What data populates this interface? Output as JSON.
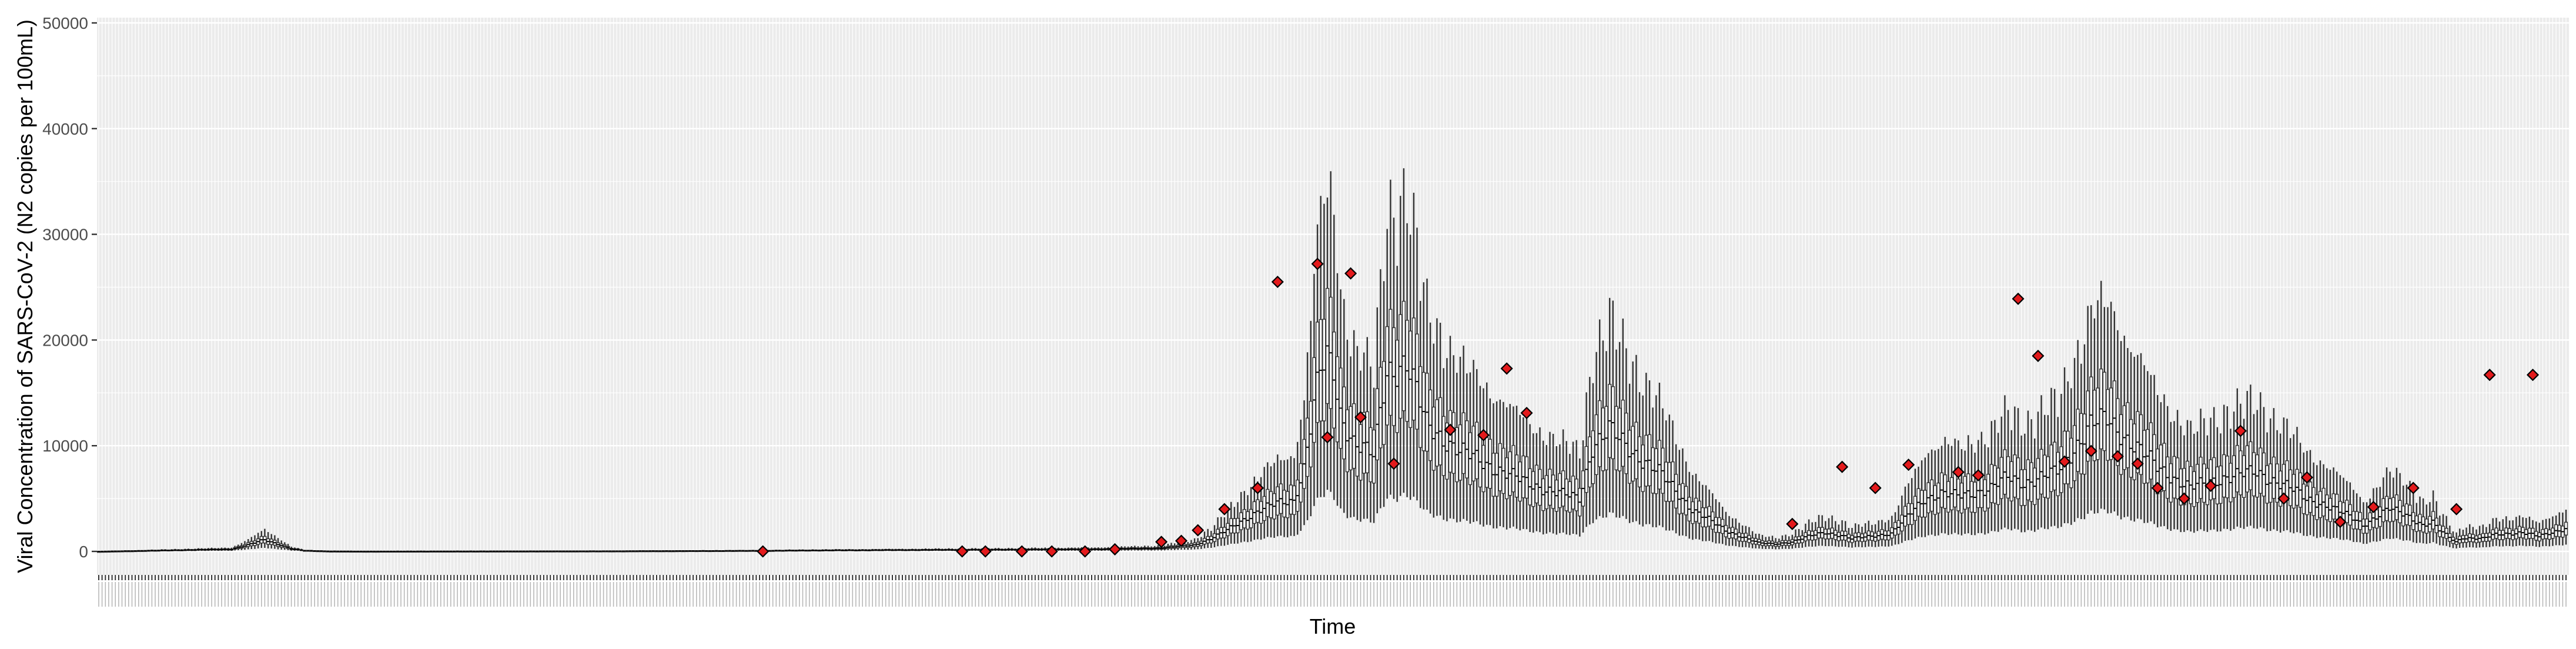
{
  "chart_data": {
    "type": "boxplot",
    "title": "",
    "xlabel": "Time",
    "ylabel": "Viral Concentration of SARS-CoV-2 (N2 copies per 100mL)",
    "ylim": [
      0,
      50000
    ],
    "y_ticks": [
      0,
      10000,
      20000,
      30000,
      40000,
      50000
    ],
    "y_tick_labels": [
      "0",
      "10000",
      "20000",
      "30000",
      "40000",
      "50000"
    ],
    "x_tick_labels_legible": false,
    "n_time_points": 744,
    "grid": true,
    "legend": "none",
    "colors": {
      "panel_background": "#ebebeb",
      "grid_major": "#ffffff",
      "box_outline": "#333333",
      "observed_fill": "#e31a1c",
      "observed_outline": "#000000"
    },
    "series": [
      {
        "kind": "boxplot_median",
        "profile_x": [
          0,
          40,
          45,
          50,
          55,
          58,
          62,
          70,
          80,
          150,
          200,
          215,
          300,
          320,
          330,
          335,
          340,
          345,
          350,
          355,
          360,
          363,
          366,
          368,
          370,
          372,
          374,
          378,
          384,
          388,
          394,
          400,
          410,
          420,
          430,
          440,
          446,
          450,
          455,
          460,
          470,
          480,
          490,
          500,
          505,
          510,
          513,
          516,
          520,
          525,
          528,
          540,
          550,
          555,
          560,
          570,
          575,
          580,
          590,
          600,
          605,
          610,
          620,
          630,
          640,
          650,
          660,
          665,
          670,
          680,
          682,
          690,
          695,
          700,
          703,
          705,
          710,
          712,
          718,
          722,
          730,
          735,
          744
        ],
        "profile_y": [
          0,
          200,
          600,
          1100,
          600,
          250,
          80,
          20,
          10,
          30,
          70,
          100,
          200,
          300,
          600,
          1200,
          2000,
          3000,
          4000,
          4500,
          4800,
          8000,
          14000,
          17000,
          18000,
          17000,
          13000,
          10500,
          9000,
          17000,
          18000,
          12000,
          9500,
          8000,
          6500,
          5500,
          5000,
          10000,
          11500,
          10000,
          7500,
          4000,
          2000,
          800,
          700,
          900,
          1200,
          1500,
          1800,
          1500,
          1200,
          1700,
          5000,
          5500,
          5200,
          6000,
          7000,
          6500,
          7500,
          12000,
          12500,
          11000,
          8000,
          6000,
          7000,
          7500,
          6000,
          5000,
          4500,
          3000,
          2500,
          4000,
          3500,
          2500,
          2700,
          2000,
          900,
          1300,
          1200,
          1600,
          1800,
          1400,
          2300
        ]
      },
      {
        "kind": "observed",
        "x": [
          200,
          260,
          267,
          278,
          287,
          297,
          306,
          320,
          326,
          331,
          339,
          349,
          349,
          355,
          367,
          370,
          377,
          380,
          390,
          407,
          417,
          424,
          430,
          510,
          525,
          535,
          545,
          560,
          566,
          578,
          584,
          592,
          600,
          608,
          614,
          620,
          628,
          636,
          645,
          658,
          665,
          675,
          685,
          697,
          710,
          720,
          733
        ],
        "y": [
          0,
          0,
          0,
          0,
          0,
          0,
          200,
          900,
          1000,
          2000,
          4000,
          6000,
          6000,
          25500,
          27200,
          10800,
          26300,
          12700,
          8300,
          11500,
          11000,
          17300,
          13100,
          2600,
          8000,
          6000,
          8200,
          7500,
          7200,
          23900,
          18500,
          8500,
          9500,
          9000,
          8300,
          6000,
          5000,
          6200,
          11400,
          5000,
          7000,
          2800,
          4200,
          6000,
          4000,
          16700,
          16700
        ]
      }
    ]
  }
}
